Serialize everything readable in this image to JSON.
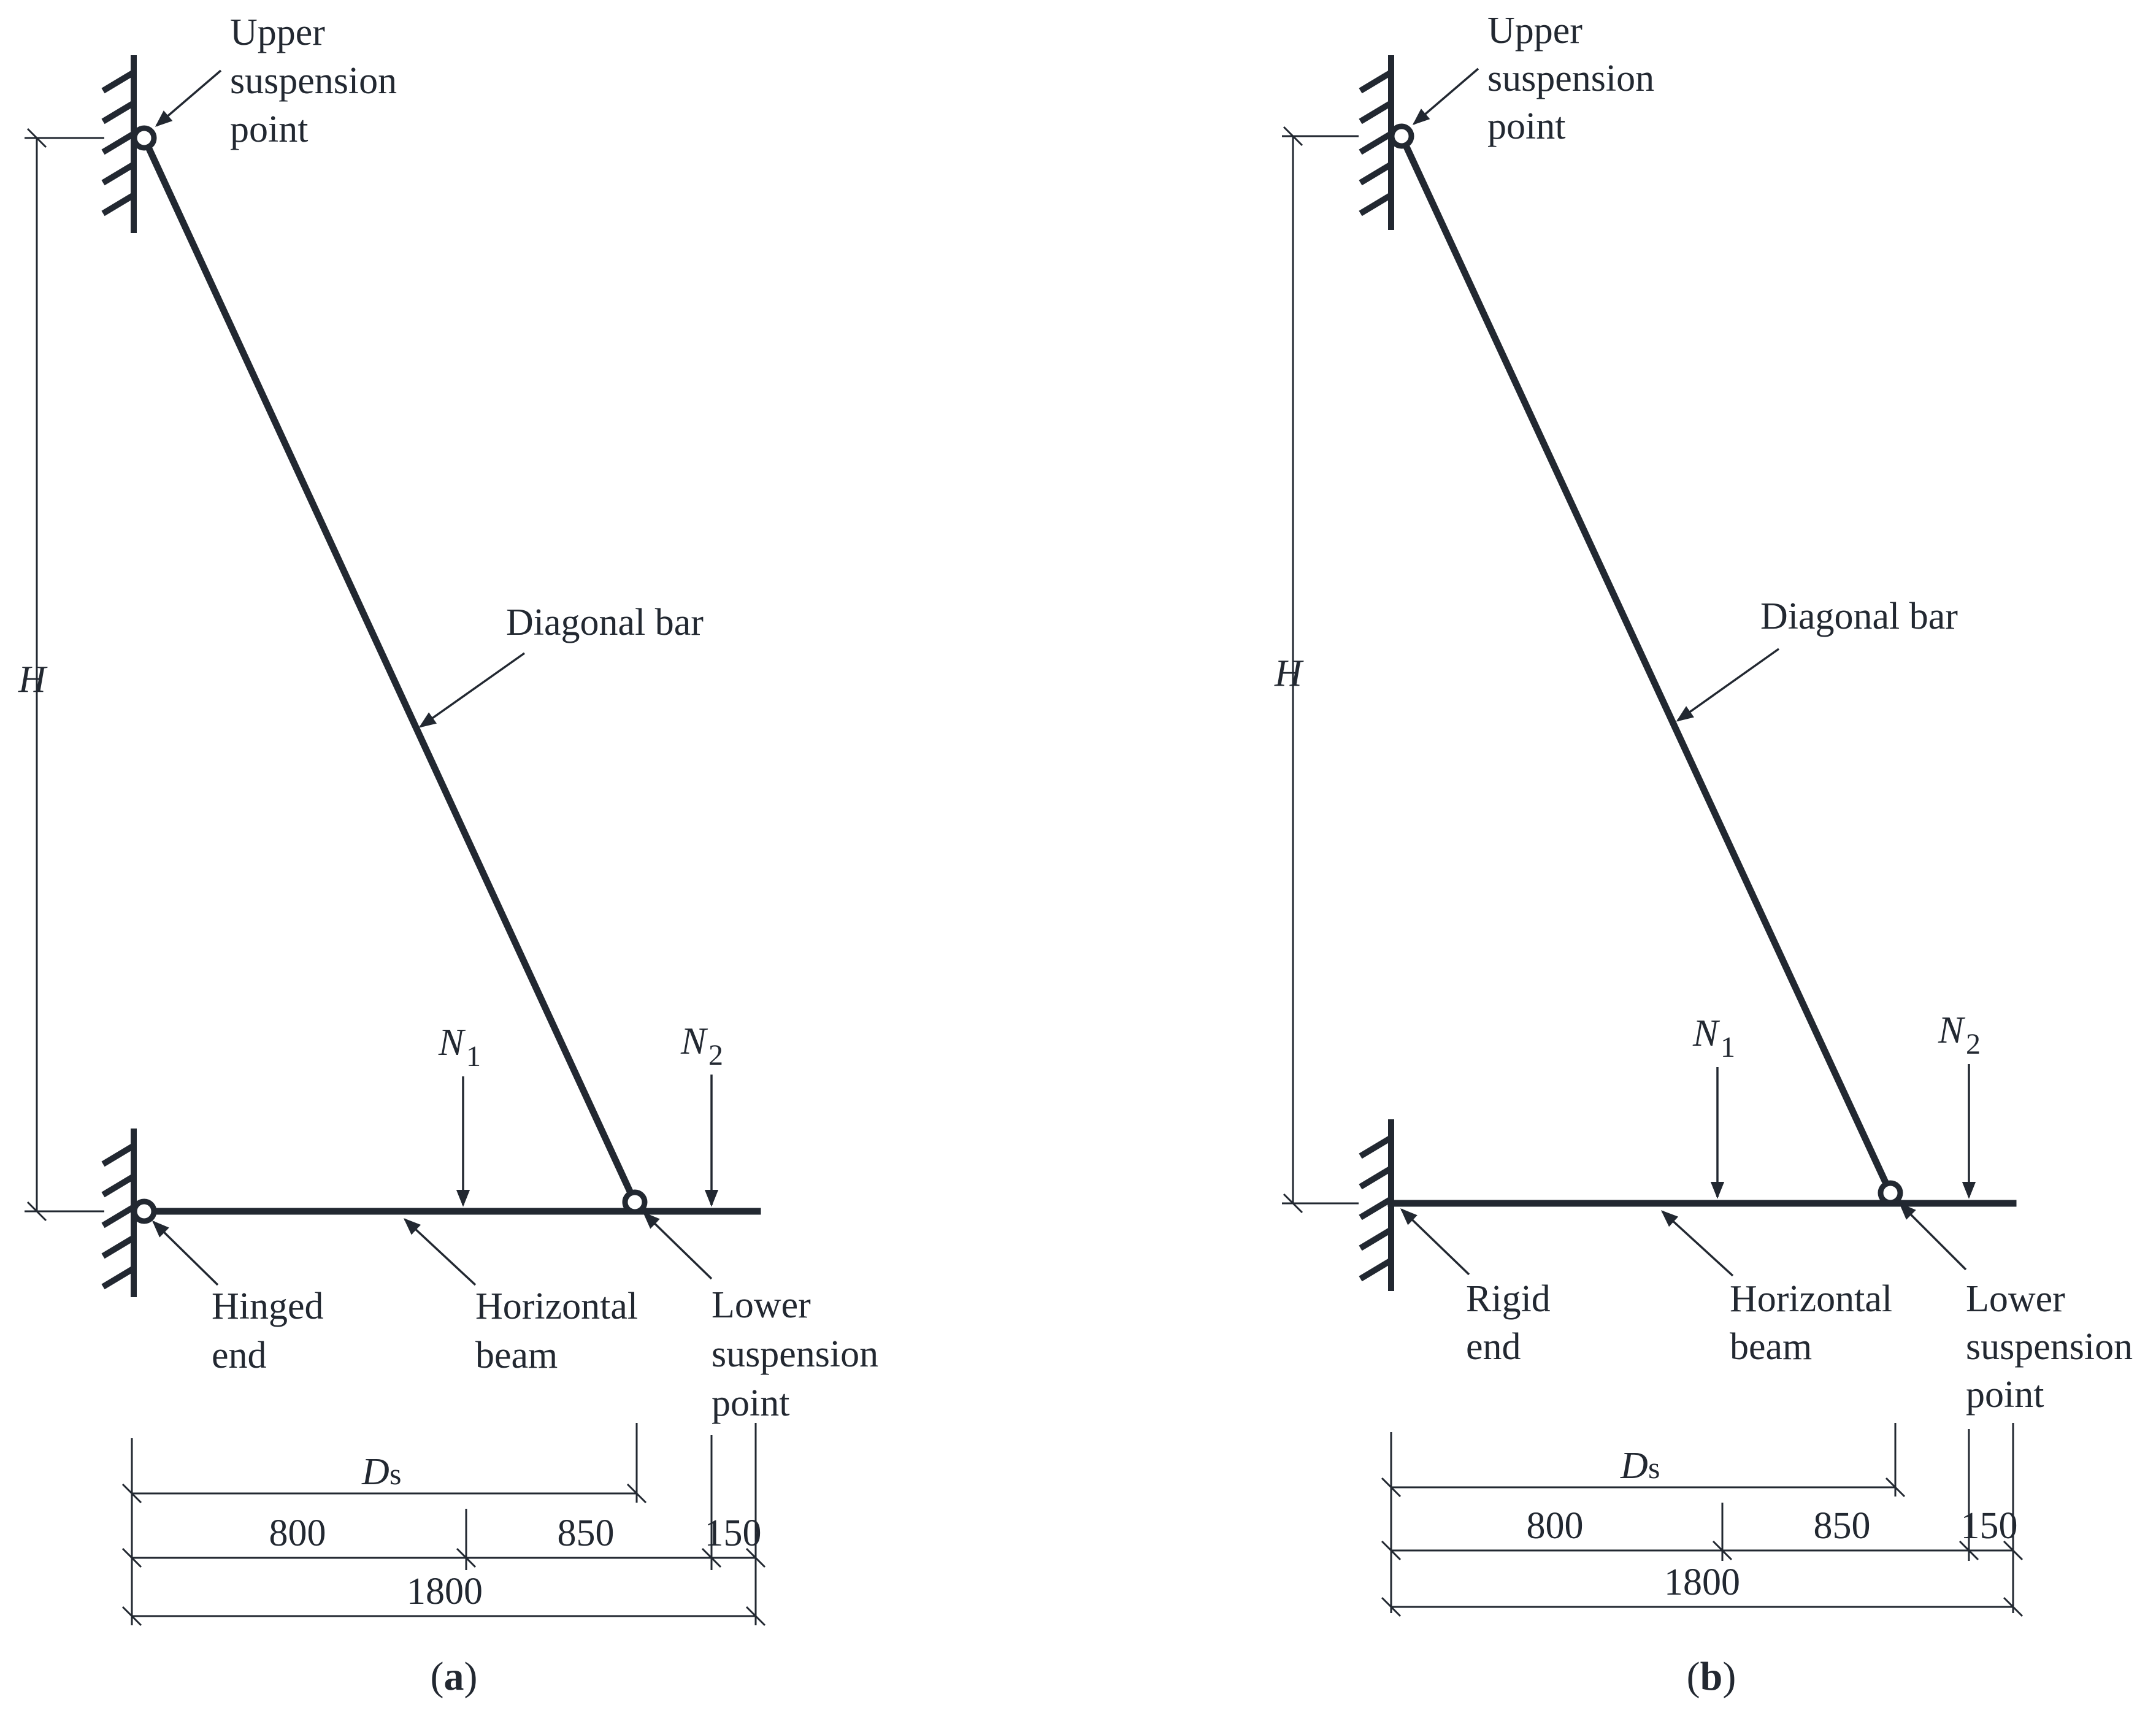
{
  "panels": [
    {
      "id": "a",
      "caption": "a",
      "left_end_label": [
        "Hinged",
        "end"
      ],
      "labels": {
        "upper": [
          "Upper",
          "suspension",
          "point"
        ],
        "diagonal": "Diagonal bar",
        "beam": [
          "Horizontal",
          "beam"
        ],
        "lower": [
          "Lower",
          "suspension",
          "point"
        ],
        "height": "H",
        "n1_main": "N",
        "n1_sub": "1",
        "n2_main": "N",
        "n2_sub": "2",
        "ds_main": "D",
        "ds_sub": "s"
      },
      "dims": {
        "d1": "800",
        "d2": "850",
        "d3": "150",
        "total": "1800"
      }
    },
    {
      "id": "b",
      "caption": "b",
      "left_end_label": [
        "Rigid",
        "end"
      ],
      "labels": {
        "upper": [
          "Upper",
          "suspension",
          "point"
        ],
        "diagonal": "Diagonal bar",
        "beam": [
          "Horizontal",
          "beam"
        ],
        "lower": [
          "Lower",
          "suspension",
          "point"
        ],
        "height": "H",
        "n1_main": "N",
        "n1_sub": "1",
        "n2_main": "N",
        "n2_sub": "2",
        "ds_main": "D",
        "ds_sub": "s"
      },
      "dims": {
        "d1": "800",
        "d2": "850",
        "d3": "150",
        "total": "1800"
      }
    }
  ],
  "colors": {
    "ink": "#222831",
    "background": "#ffffff"
  }
}
